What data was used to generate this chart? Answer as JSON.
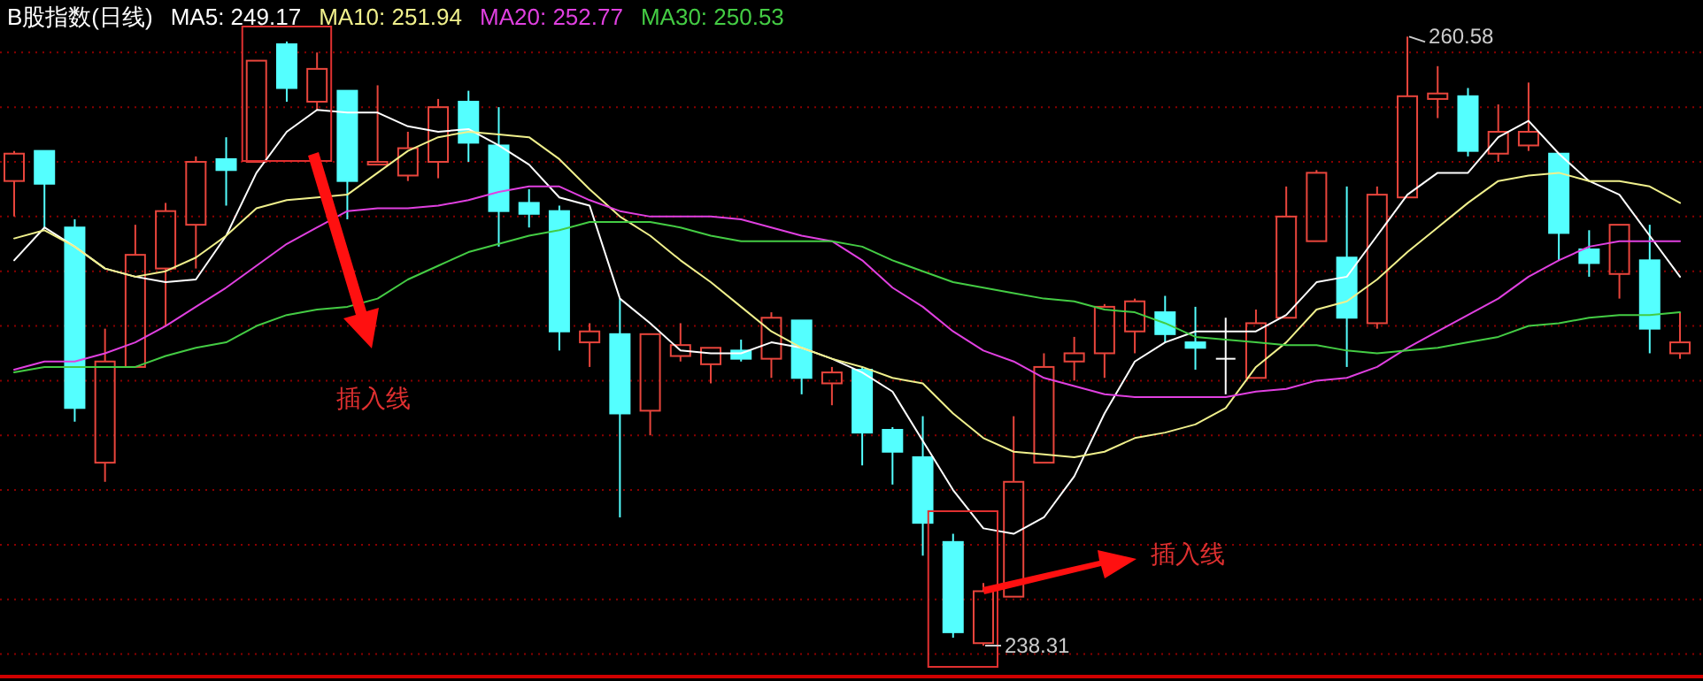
{
  "chart_data": {
    "type": "candlestick",
    "title": "B股指数(日线)",
    "categories": [
      null,
      null,
      null,
      null,
      null,
      null,
      null,
      null,
      null,
      null,
      null,
      null,
      null,
      null,
      null,
      null,
      null,
      null,
      null,
      null,
      null,
      null,
      null,
      null,
      null,
      null,
      null,
      null,
      null,
      null,
      null,
      null,
      null,
      null,
      null,
      null,
      null,
      null,
      null,
      null,
      null,
      null,
      null,
      null,
      null,
      null,
      null,
      null,
      null,
      null,
      null,
      null,
      null,
      null,
      null,
      null
    ],
    "ohlc": [
      [
        255.3,
        256.4,
        254.0,
        256.3
      ],
      [
        256.4,
        256.4,
        253.6,
        255.2
      ],
      [
        253.6,
        253.9,
        246.5,
        247.0
      ],
      [
        245.0,
        249.9,
        244.3,
        248.7
      ],
      [
        248.5,
        253.7,
        248.5,
        252.6
      ],
      [
        252.1,
        254.5,
        250.0,
        254.2
      ],
      [
        253.7,
        256.2,
        252.1,
        256.0
      ],
      [
        256.1,
        256.9,
        254.4,
        255.7
      ],
      [
        256.0,
        259.7,
        256.0,
        259.7
      ],
      [
        260.3,
        260.4,
        258.2,
        258.7
      ],
      [
        258.2,
        260.0,
        257.9,
        259.4
      ],
      [
        258.6,
        258.6,
        253.9,
        255.3
      ],
      [
        255.9,
        258.8,
        255.9,
        256.0
      ],
      [
        255.5,
        257.1,
        255.3,
        256.5
      ],
      [
        256.0,
        258.3,
        255.4,
        258.0
      ],
      [
        258.2,
        258.6,
        256.0,
        256.7
      ],
      [
        256.6,
        258.0,
        252.9,
        254.2
      ],
      [
        254.5,
        255.0,
        253.6,
        254.1
      ],
      [
        254.2,
        254.4,
        249.1,
        249.8
      ],
      [
        249.4,
        250.1,
        248.5,
        249.8
      ],
      [
        249.7,
        251.0,
        243.0,
        246.8
      ],
      [
        246.9,
        249.7,
        246.0,
        249.7
      ],
      [
        248.9,
        250.1,
        248.7,
        249.3
      ],
      [
        248.6,
        249.2,
        247.9,
        249.2
      ],
      [
        249.1,
        249.5,
        248.7,
        248.8
      ],
      [
        248.8,
        250.5,
        248.1,
        250.3
      ],
      [
        250.2,
        250.2,
        247.5,
        248.1
      ],
      [
        247.9,
        248.5,
        247.1,
        248.3
      ],
      [
        248.4,
        248.5,
        244.9,
        246.1
      ],
      [
        246.2,
        246.3,
        244.2,
        245.4
      ],
      [
        245.2,
        246.7,
        241.6,
        242.8
      ],
      [
        242.1,
        242.4,
        238.6,
        238.8
      ],
      [
        238.4,
        240.6,
        238.31,
        240.3
      ],
      [
        240.1,
        246.7,
        240.1,
        244.3
      ],
      [
        245.0,
        249.0,
        245.0,
        248.5
      ],
      [
        248.7,
        249.6,
        248.0,
        249.0
      ],
      [
        249.0,
        250.8,
        248.1,
        250.7
      ],
      [
        249.8,
        251.0,
        249.0,
        250.9
      ],
      [
        250.5,
        251.1,
        249.4,
        249.7
      ],
      [
        249.4,
        250.7,
        248.4,
        249.2
      ],
      [
        248.8,
        250.3,
        247.5,
        248.8
      ],
      [
        248.1,
        250.6,
        248.1,
        250.1
      ],
      [
        250.3,
        255.1,
        250.3,
        254.0
      ],
      [
        253.1,
        255.7,
        253.1,
        255.6
      ],
      [
        252.5,
        255.1,
        248.5,
        250.3
      ],
      [
        250.1,
        255.1,
        249.9,
        254.8
      ],
      [
        254.7,
        260.58,
        254.7,
        258.4
      ],
      [
        258.3,
        259.5,
        257.6,
        258.5
      ],
      [
        258.4,
        258.7,
        256.2,
        256.4
      ],
      [
        256.3,
        258.1,
        256.0,
        257.1
      ],
      [
        256.6,
        258.9,
        256.4,
        257.1
      ],
      [
        256.3,
        256.3,
        252.4,
        253.4
      ],
      [
        252.8,
        253.5,
        251.8,
        252.3
      ],
      [
        251.9,
        253.7,
        251.0,
        253.7
      ],
      [
        252.4,
        253.7,
        249.0,
        249.9
      ],
      [
        249.0,
        250.5,
        248.8,
        249.4
      ]
    ],
    "colors": [
      "#e8453c",
      "#54ffff",
      "#54ffff",
      "#e8453c",
      "#e8453c",
      "#e8453c",
      "#e8453c",
      "#54ffff",
      "#e8453c",
      "#54ffff",
      "#e8453c",
      "#54ffff",
      "#e8453c",
      "#e8453c",
      "#e8453c",
      "#54ffff",
      "#54ffff",
      "#54ffff",
      "#54ffff",
      "#e8453c",
      "#54ffff",
      "#e8453c",
      "#e8453c",
      "#e8453c",
      "#54ffff",
      "#e8453c",
      "#54ffff",
      "#e8453c",
      "#54ffff",
      "#54ffff",
      "#54ffff",
      "#54ffff",
      "#e8453c",
      "#e8453c",
      "#e8453c",
      "#e8453c",
      "#e8453c",
      "#e8453c",
      "#54ffff",
      "#54ffff",
      "#ffffff",
      "#e8453c",
      "#e8453c",
      "#e8453c",
      "#54ffff",
      "#e8453c",
      "#e8453c",
      "#e8453c",
      "#54ffff",
      "#e8453c",
      "#e8453c",
      "#54ffff",
      "#54ffff",
      "#e8453c",
      "#54ffff",
      "#e8453c"
    ],
    "series": [
      {
        "name": "MA5: 249.17",
        "type": "line",
        "color": "#ffffff",
        "values": [
          252.4,
          253.6,
          252.9,
          252.1,
          251.8,
          251.6,
          251.7,
          253.3,
          255.6,
          257.1,
          257.9,
          257.8,
          257.8,
          257.3,
          257.1,
          257.2,
          256.6,
          255.9,
          254.7,
          254.4,
          251.0,
          250.1,
          249.1,
          249.0,
          249.0,
          249.4,
          249.2,
          248.8,
          248.3,
          247.6,
          245.8,
          244.0,
          242.6,
          242.4,
          243.0,
          244.5,
          246.8,
          248.7,
          249.4,
          249.8,
          249.8,
          249.8,
          250.4,
          251.6,
          251.8,
          253.3,
          254.8,
          255.6,
          255.6,
          256.9,
          257.5,
          256.3,
          255.3,
          254.8,
          253.3,
          251.8
        ]
      },
      {
        "name": "MA10: 251.94",
        "type": "line",
        "color": "#f0f08c",
        "values": [
          253.2,
          253.5,
          252.9,
          252.1,
          251.8,
          252.0,
          252.5,
          253.3,
          254.3,
          254.6,
          254.7,
          254.8,
          255.6,
          256.4,
          256.9,
          257.1,
          257.0,
          256.9,
          256.1,
          255.0,
          254.0,
          253.3,
          252.4,
          251.6,
          250.7,
          249.8,
          249.2,
          248.8,
          248.5,
          248.1,
          247.9,
          246.8,
          245.9,
          245.4,
          245.3,
          245.2,
          245.4,
          245.9,
          246.1,
          246.4,
          247.0,
          248.5,
          249.4,
          250.6,
          250.9,
          251.7,
          252.7,
          253.6,
          254.5,
          255.3,
          255.5,
          255.6,
          255.3,
          255.3,
          255.1,
          254.5
        ]
      },
      {
        "name": "MA20: 252.77",
        "type": "line",
        "color": "#e040e0",
        "values": [
          248.4,
          248.7,
          248.7,
          249.0,
          249.4,
          250.0,
          250.7,
          251.4,
          252.2,
          253.0,
          253.6,
          254.2,
          254.3,
          254.3,
          254.4,
          254.6,
          254.9,
          255.1,
          255.1,
          254.6,
          254.2,
          254.0,
          254.0,
          254.0,
          253.9,
          253.6,
          253.3,
          253.1,
          252.4,
          251.4,
          250.7,
          249.8,
          249.1,
          248.7,
          248.1,
          247.8,
          247.5,
          247.4,
          247.4,
          247.4,
          247.4,
          247.6,
          247.7,
          248.0,
          248.1,
          248.5,
          249.2,
          249.8,
          250.4,
          251.0,
          251.8,
          252.4,
          252.9,
          253.1,
          253.1,
          253.1
        ]
      },
      {
        "name": "MA30: 250.53",
        "type": "line",
        "color": "#44cc44",
        "values": [
          248.3,
          248.5,
          248.5,
          248.5,
          248.5,
          248.9,
          249.2,
          249.4,
          250.0,
          250.4,
          250.6,
          250.7,
          251.0,
          251.7,
          252.2,
          252.7,
          253.0,
          253.3,
          253.5,
          253.8,
          253.8,
          253.8,
          253.6,
          253.3,
          253.1,
          253.1,
          253.1,
          253.1,
          252.9,
          252.4,
          252.0,
          251.6,
          251.4,
          251.2,
          251.0,
          250.9,
          250.6,
          250.5,
          250.1,
          249.6,
          249.5,
          249.4,
          249.3,
          249.3,
          249.1,
          249.0,
          249.1,
          249.2,
          249.4,
          249.6,
          250.0,
          250.1,
          250.3,
          250.4,
          250.4,
          250.5
        ]
      }
    ],
    "yticks": [
      {
        "value": 260,
        "label": null
      },
      {
        "value": 258,
        "label": null
      },
      {
        "value": 256,
        "label": null
      },
      {
        "value": 254,
        "label": null
      },
      {
        "value": 252,
        "label": null
      },
      {
        "value": 250,
        "label": null
      },
      {
        "value": 248,
        "label": null
      },
      {
        "value": 246,
        "label": null
      },
      {
        "value": 244,
        "label": null
      },
      {
        "value": 242,
        "label": null
      },
      {
        "value": 240,
        "label": null
      },
      {
        "value": 238,
        "label": null
      }
    ],
    "grid": "y",
    "tick_labels": false,
    "legend": "top left",
    "annotations": [
      "插入线",
      "插入线",
      "260.58",
      "238.31"
    ]
  }
}
